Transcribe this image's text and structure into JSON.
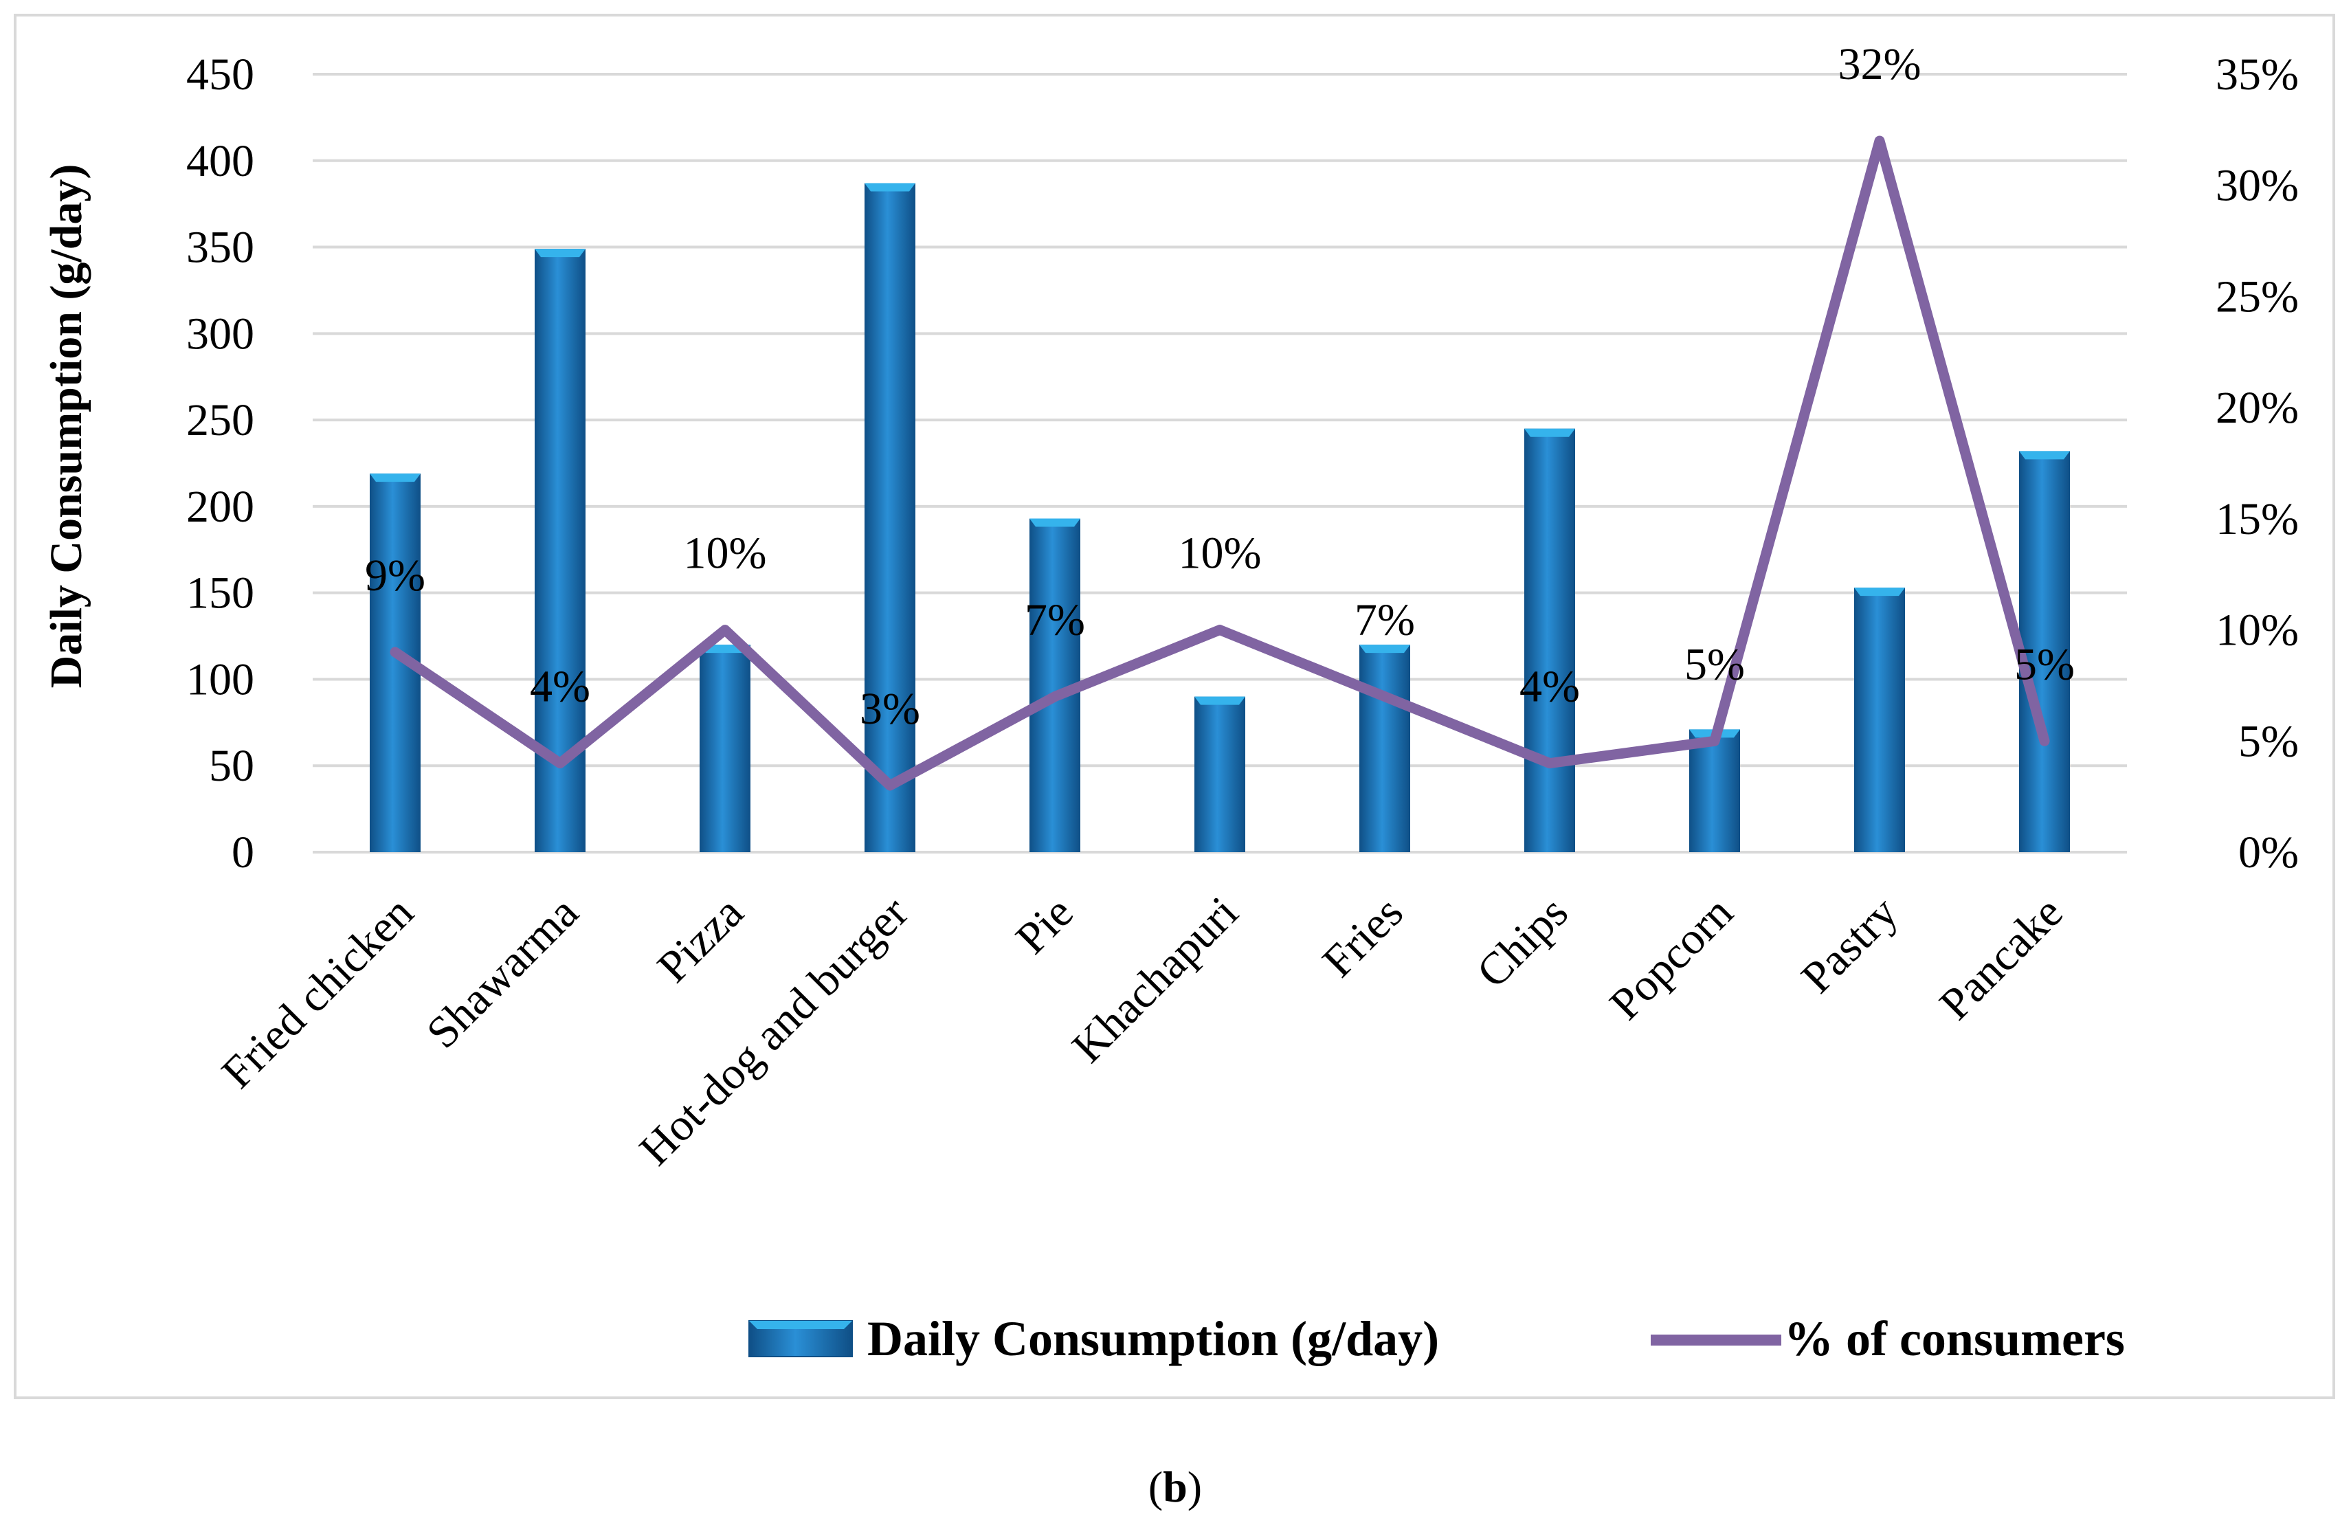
{
  "chart_data": {
    "type": "bar",
    "categories": [
      "Fried chicken",
      "Shawarma",
      "Pizza",
      "Hot-dog and burger",
      "Pie",
      "Khachapuri",
      "Fries",
      "Chips",
      "Popcorn",
      "Pastry",
      "Pancake"
    ],
    "series": [
      {
        "name": "Daily Consumption (g/day)",
        "type": "bar",
        "axis": "left",
        "values": [
          219,
          349,
          120,
          387,
          193,
          90,
          120,
          245,
          71,
          153,
          232
        ]
      },
      {
        "name": "% of consumers",
        "type": "line",
        "axis": "right",
        "values": [
          9,
          4,
          10,
          3,
          7,
          10,
          7,
          4,
          5,
          32,
          5
        ],
        "data_labels": [
          "9%",
          "4%",
          "10%",
          "3%",
          "7%",
          "10%",
          "7%",
          "4%",
          "5%",
          "32%",
          "5%"
        ]
      }
    ],
    "ylabel": "Daily Consumption (g/day)",
    "ylim": [
      0,
      450
    ],
    "y_ticks": [
      "0",
      "50",
      "100",
      "150",
      "200",
      "250",
      "300",
      "350",
      "400",
      "450"
    ],
    "y2lim": [
      0,
      35
    ],
    "y2_ticks": [
      "0%",
      "5%",
      "10%",
      "15%",
      "20%",
      "25%",
      "30%",
      "35%"
    ],
    "grid": true,
    "legend_position": "bottom-right",
    "colors": {
      "bar": "#1b75bc",
      "bar_light": "#35b3ec",
      "bar_dark": "#0f4f86",
      "line": "#8064a2",
      "grid": "#d9d9d9"
    }
  },
  "caption": {
    "open": "(",
    "letter": "b",
    "close": ")"
  }
}
